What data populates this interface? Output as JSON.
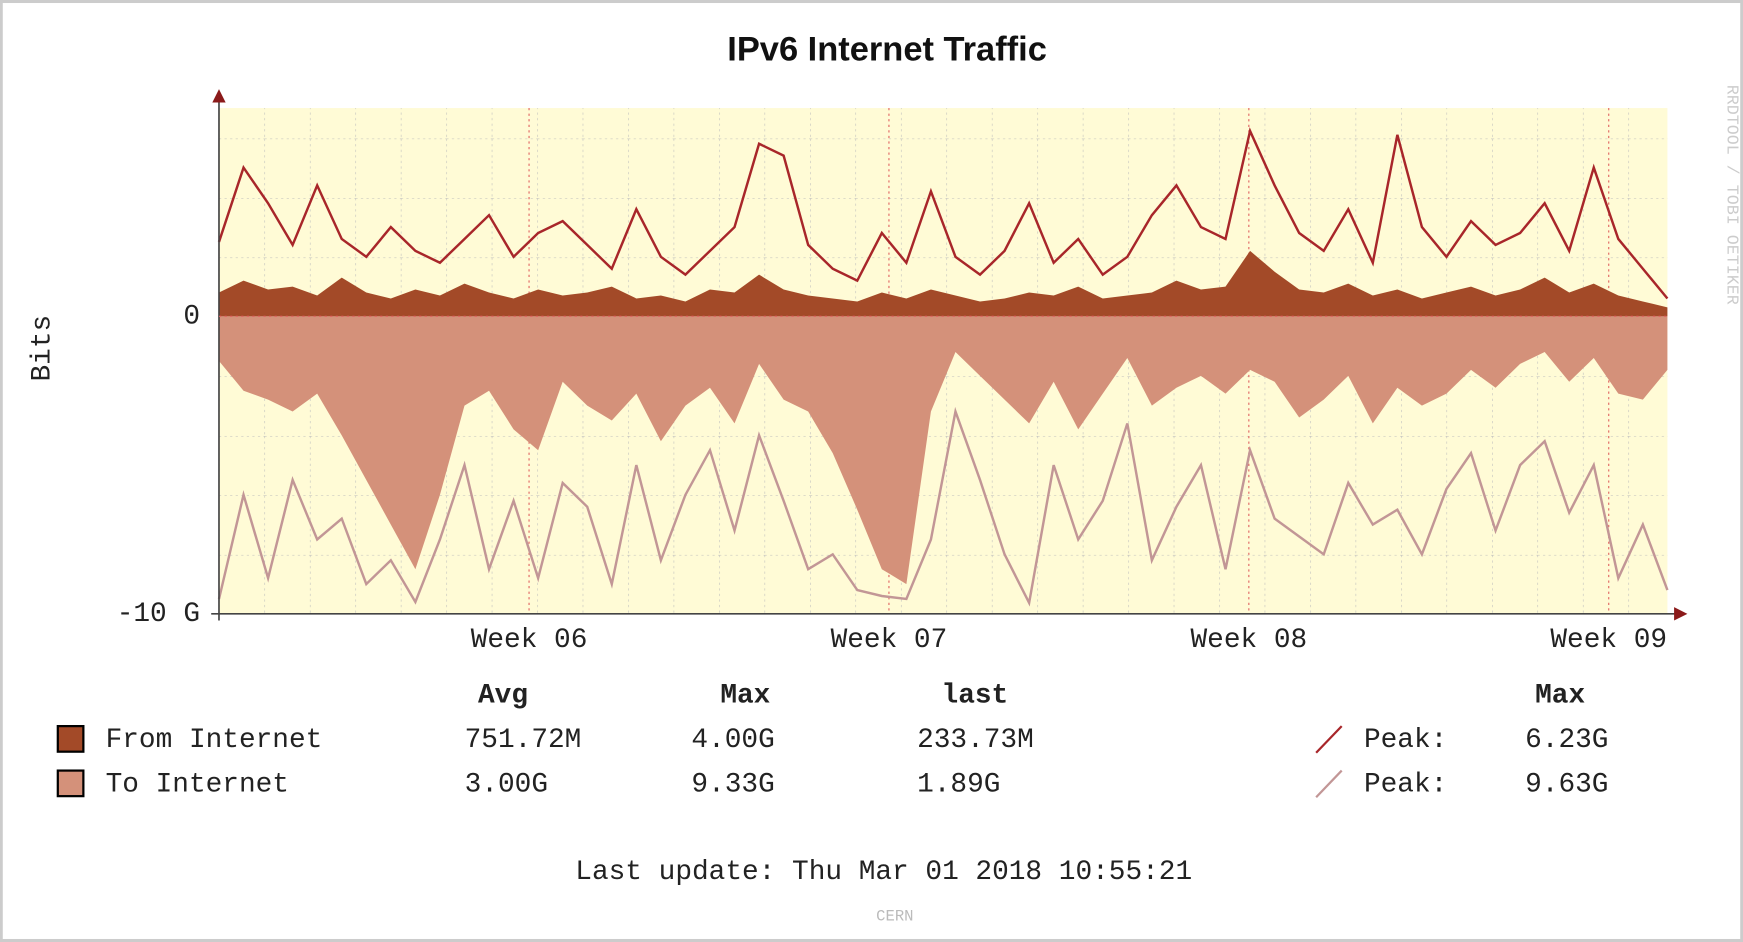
{
  "chart_data": {
    "type": "area",
    "title": "IPv6 Internet Traffic",
    "y_label": "Bits",
    "x": [
      0,
      1,
      2,
      3,
      4,
      5,
      6,
      7,
      8,
      9,
      10,
      11,
      12,
      13,
      14,
      15,
      16,
      17,
      18,
      19,
      20,
      21,
      22,
      23,
      24,
      25,
      26,
      27,
      28,
      29,
      30,
      31,
      32,
      33,
      34,
      35,
      36,
      37,
      38,
      39,
      40,
      41,
      42,
      43,
      44,
      45,
      46,
      47,
      48,
      49,
      50,
      51,
      52,
      53,
      54,
      55,
      56,
      57,
      58,
      59
    ],
    "xlim": [
      0,
      59
    ],
    "xticks": [
      {
        "value": 12.63,
        "label": "Week 06"
      },
      {
        "value": 27.29,
        "label": "Week 07"
      },
      {
        "value": 41.95,
        "label": "Week 08"
      },
      {
        "value": 56.61,
        "label": "Week 09"
      }
    ],
    "ylim": [
      -10000000000.0,
      7000000000.0
    ],
    "yticks": [
      0,
      {
        "value": -10000000000.0,
        "label": "-10 G"
      }
    ],
    "grid": true,
    "series": [
      {
        "name": "From Internet",
        "color": "#a34a28",
        "style": "area",
        "values": [
          800000000.0,
          1200000000.0,
          900000000.0,
          1000000000.0,
          700000000.0,
          1300000000.0,
          800000000.0,
          600000000.0,
          900000000.0,
          700000000.0,
          1100000000.0,
          800000000.0,
          600000000.0,
          900000000.0,
          700000000.0,
          800000000.0,
          1000000000.0,
          600000000.0,
          700000000.0,
          500000000.0,
          900000000.0,
          800000000.0,
          1400000000.0,
          900000000.0,
          700000000.0,
          600000000.0,
          500000000.0,
          800000000.0,
          600000000.0,
          900000000.0,
          700000000.0,
          500000000.0,
          600000000.0,
          800000000.0,
          700000000.0,
          1000000000.0,
          600000000.0,
          700000000.0,
          800000000.0,
          1200000000.0,
          900000000.0,
          1000000000.0,
          2200000000.0,
          1500000000.0,
          900000000.0,
          800000000.0,
          1100000000.0,
          700000000.0,
          900000000.0,
          600000000.0,
          800000000.0,
          1000000000.0,
          700000000.0,
          900000000.0,
          1300000000.0,
          800000000.0,
          1100000000.0,
          700000000.0,
          500000000.0,
          300000000.0
        ]
      },
      {
        "name": "To Internet",
        "color": "#d4917a",
        "style": "area",
        "values": [
          -1500000000.0,
          -2500000000.0,
          -2800000000.0,
          -3200000000.0,
          -2600000000.0,
          -4000000000.0,
          -5500000000.0,
          -7000000000.0,
          -8500000000.0,
          -6000000000.0,
          -3000000000.0,
          -2500000000.0,
          -3800000000.0,
          -4500000000.0,
          -2200000000.0,
          -3000000000.0,
          -3500000000.0,
          -2600000000.0,
          -4200000000.0,
          -3000000000.0,
          -2400000000.0,
          -3600000000.0,
          -1600000000.0,
          -2800000000.0,
          -3200000000.0,
          -4600000000.0,
          -6500000000.0,
          -8500000000.0,
          -9000000000.0,
          -3200000000.0,
          -1200000000.0,
          -2000000000.0,
          -2800000000.0,
          -3600000000.0,
          -2200000000.0,
          -3800000000.0,
          -2600000000.0,
          -1400000000.0,
          -3000000000.0,
          -2400000000.0,
          -2000000000.0,
          -2600000000.0,
          -1800000000.0,
          -2200000000.0,
          -3400000000.0,
          -2800000000.0,
          -2000000000.0,
          -3600000000.0,
          -2400000000.0,
          -3000000000.0,
          -2600000000.0,
          -1800000000.0,
          -2400000000.0,
          -1600000000.0,
          -1200000000.0,
          -2200000000.0,
          -1400000000.0,
          -2600000000.0,
          -2800000000.0,
          -1800000000.0
        ]
      },
      {
        "name": "Peak:",
        "color": "#a8262a",
        "style": "line",
        "values": [
          2500000000.0,
          5000000000.0,
          3800000000.0,
          2400000000.0,
          4400000000.0,
          2600000000.0,
          2000000000.0,
          3000000000.0,
          2200000000.0,
          1800000000.0,
          2600000000.0,
          3400000000.0,
          2000000000.0,
          2800000000.0,
          3200000000.0,
          2400000000.0,
          1600000000.0,
          3600000000.0,
          2000000000.0,
          1400000000.0,
          2200000000.0,
          3000000000.0,
          5800000000.0,
          5400000000.0,
          2400000000.0,
          1600000000.0,
          1200000000.0,
          2800000000.0,
          1800000000.0,
          4200000000.0,
          2000000000.0,
          1400000000.0,
          2200000000.0,
          3800000000.0,
          1800000000.0,
          2600000000.0,
          1400000000.0,
          2000000000.0,
          3400000000.0,
          4400000000.0,
          3000000000.0,
          2600000000.0,
          6230000000.0,
          4400000000.0,
          2800000000.0,
          2200000000.0,
          3600000000.0,
          1800000000.0,
          6100000000.0,
          3000000000.0,
          2000000000.0,
          3200000000.0,
          2400000000.0,
          2800000000.0,
          3800000000.0,
          2200000000.0,
          5000000000.0,
          2600000000.0,
          1600000000.0,
          600000000.0
        ]
      },
      {
        "name": "Peak:",
        "color": "#c29696",
        "style": "line",
        "values": [
          -9500000000.0,
          -6000000000.0,
          -8800000000.0,
          -5500000000.0,
          -7500000000.0,
          -6800000000.0,
          -9000000000.0,
          -8200000000.0,
          -9600000000.0,
          -7500000000.0,
          -5000000000.0,
          -8500000000.0,
          -6200000000.0,
          -8800000000.0,
          -5600000000.0,
          -6400000000.0,
          -9000000000.0,
          -5000000000.0,
          -8200000000.0,
          -6000000000.0,
          -4500000000.0,
          -7200000000.0,
          -4000000000.0,
          -6200000000.0,
          -8500000000.0,
          -8000000000.0,
          -9200000000.0,
          -9400000000.0,
          -9500000000.0,
          -7500000000.0,
          -3200000000.0,
          -5500000000.0,
          -8000000000.0,
          -9630000000.0,
          -5000000000.0,
          -7500000000.0,
          -6200000000.0,
          -3600000000.0,
          -8200000000.0,
          -6400000000.0,
          -5000000000.0,
          -8500000000.0,
          -4500000000.0,
          -6800000000.0,
          -7400000000.0,
          -8000000000.0,
          -5600000000.0,
          -7000000000.0,
          -6500000000.0,
          -8000000000.0,
          -5800000000.0,
          -4600000000.0,
          -7200000000.0,
          -5000000000.0,
          -4200000000.0,
          -6600000000.0,
          -5000000000.0,
          -8800000000.0,
          -7000000000.0,
          -9200000000.0
        ]
      }
    ],
    "legend_headers": [
      "Avg",
      "Max",
      "last",
      "Max"
    ],
    "legend_stats": [
      [
        "751.72M",
        "4.00G",
        "233.73M",
        "6.23G"
      ],
      [
        "3.00G",
        "9.33G",
        "1.89G",
        "9.63G"
      ]
    ],
    "footer": "Last update: Thu Mar 01 2018 10:55:21",
    "watermark": "RRDTOOL / TOBI OETIKER",
    "credit": "CERN"
  }
}
